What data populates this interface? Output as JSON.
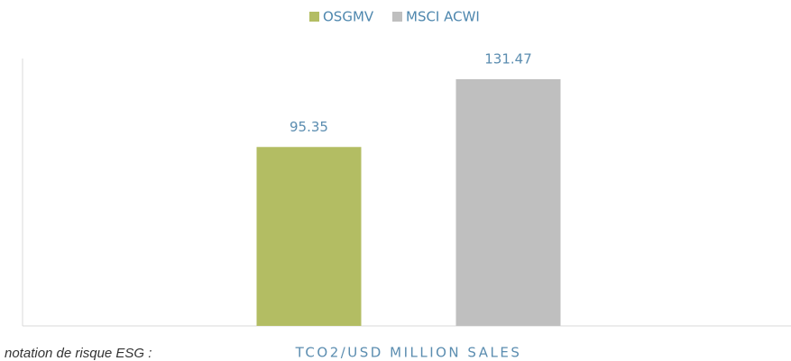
{
  "chart_data": {
    "type": "bar",
    "categories": [
      "TCO2/USD MILLION SALES"
    ],
    "series": [
      {
        "name": "OSGMV",
        "color": "#b3bd63",
        "values": [
          95.35
        ]
      },
      {
        "name": "MSCI ACWI",
        "color": "#bfbfbf",
        "values": [
          131.47
        ]
      }
    ],
    "ylim": [
      0,
      142.5
    ],
    "legend": "top",
    "annotation": "notation de risque ESG :"
  }
}
